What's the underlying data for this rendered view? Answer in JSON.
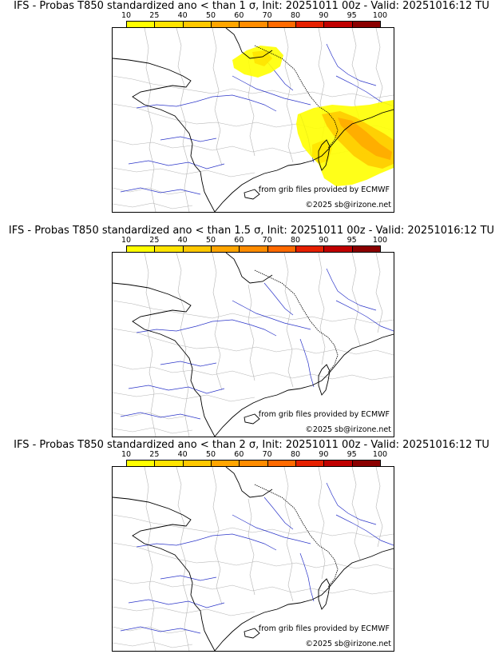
{
  "colorbar": {
    "ticks": [
      "10",
      "25",
      "40",
      "50",
      "60",
      "70",
      "80",
      "90",
      "95",
      "100"
    ],
    "colors": [
      "#ffff00",
      "#ffe400",
      "#ffc800",
      "#ffa500",
      "#ff8c00",
      "#ff6a00",
      "#e62000",
      "#c00000",
      "#8b0000",
      "#5a0000"
    ]
  },
  "credits": {
    "grib": "from grib files provided by ECMWF",
    "copyright": "©2025 sb@irizone.net"
  },
  "panels": [
    {
      "title": "IFS - Probas T850  standardized ano < than 1 σ, Init: 20251011 00z - Valid: 20251016:12 TU",
      "has_anomaly": true
    },
    {
      "title": "IFS - Probas T850  standardized ano < than 1.5 σ, Init: 20251011 00z - Valid: 20251016:12 TU",
      "has_anomaly": false
    },
    {
      "title": "IFS - Probas T850  standardized ano < than 2 σ, Init: 20251011 00z - Valid: 20251016:12 TU",
      "has_anomaly": false
    }
  ]
}
